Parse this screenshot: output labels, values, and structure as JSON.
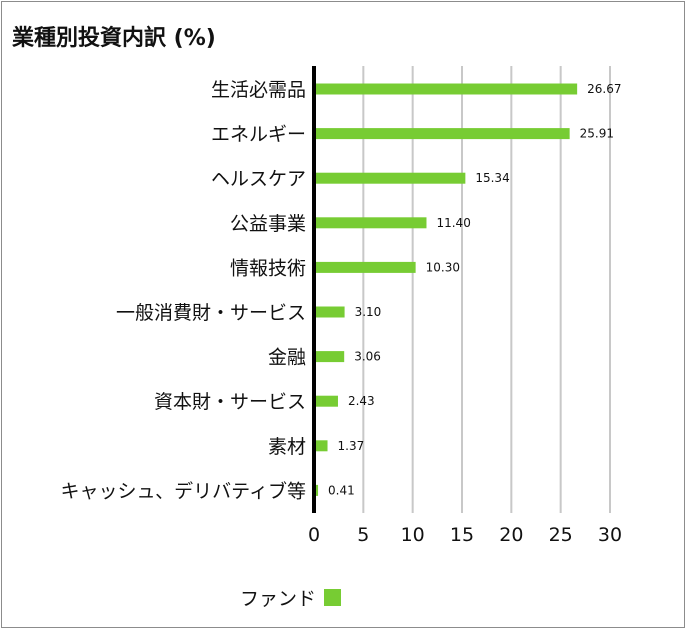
{
  "title": "業種別投資内訳 (%)",
  "chart_data": {
    "type": "bar",
    "orientation": "horizontal",
    "categories": [
      "生活必需品",
      "エネルギー",
      "ヘルスケア",
      "公益事業",
      "情報技術",
      "一般消費財・サービス",
      "金融",
      "資本財・サービス",
      "素材",
      "キャッシュ、デリバティブ等"
    ],
    "series": [
      {
        "name": "ファンド",
        "values": [
          26.67,
          25.91,
          15.34,
          11.4,
          10.3,
          3.1,
          3.06,
          2.43,
          1.37,
          0.41
        ]
      }
    ],
    "value_labels": [
      "26.67",
      "25.91",
      "15.34",
      "11.40",
      "10.30",
      "3.10",
      "3.06",
      "2.43",
      "1.37",
      "0.41"
    ],
    "xlim": [
      0,
      30
    ],
    "xticks": [
      "0",
      "5",
      "10",
      "15",
      "20",
      "25",
      "30"
    ],
    "grid": true,
    "legend_position": "bottom",
    "bar_color": "#77cc33",
    "grid_color": "#c8c8c8",
    "axis_color": "#000000"
  }
}
